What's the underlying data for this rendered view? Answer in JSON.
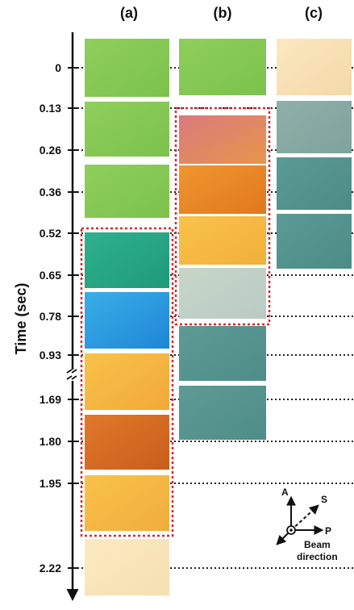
{
  "columns": [
    "(a)",
    "(b)",
    "(c)"
  ],
  "axis_label": "Time (sec)",
  "times": [
    "0",
    "0.13",
    "0.26",
    "0.36",
    "0.52",
    "0.65",
    "0.78",
    "0.93",
    "1.69",
    "1.80",
    "1.95",
    "2.22"
  ],
  "compass": {
    "a": "A",
    "s": "S",
    "p": "P",
    "beam": "Beam",
    "direction": "direction"
  }
}
